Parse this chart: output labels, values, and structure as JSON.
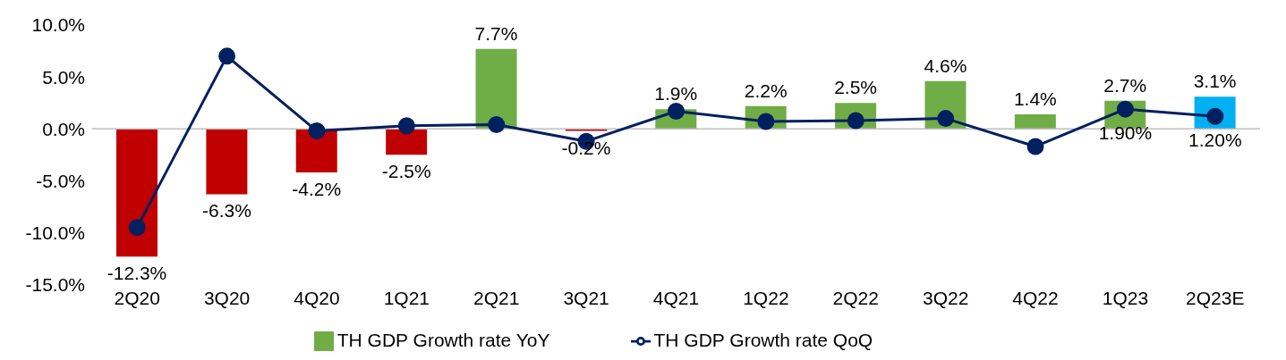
{
  "chart_data": {
    "type": "bar",
    "categories": [
      "2Q20",
      "3Q20",
      "4Q20",
      "1Q21",
      "2Q21",
      "3Q21",
      "4Q21",
      "1Q22",
      "2Q22",
      "3Q22",
      "4Q22",
      "1Q23",
      "2Q23E"
    ],
    "series": [
      {
        "name": "TH GDP Growth rate YoY",
        "color": "#70ad47",
        "colors": [
          "#c00000",
          "#c00000",
          "#c00000",
          "#c00000",
          "#70ad47",
          "#c00000",
          "#70ad47",
          "#70ad47",
          "#70ad47",
          "#70ad47",
          "#70ad47",
          "#70ad47",
          "#00b0f0"
        ],
        "values": [
          -12.3,
          -6.3,
          -4.2,
          -2.5,
          7.7,
          -0.2,
          1.9,
          2.2,
          2.5,
          4.6,
          1.4,
          2.7,
          3.1
        ],
        "value_labels": [
          "-12.3%",
          "-6.3%",
          "-4.2%",
          "-2.5%",
          "7.7%",
          "-0.2%",
          "1.9%",
          "2.2%",
          "2.5%",
          "4.6%",
          "1.4%",
          "2.7%",
          "3.1%"
        ]
      },
      {
        "name": "TH GDP Growth rate QoQ",
        "type": "line",
        "color": "#002060",
        "values": [
          -9.5,
          7.0,
          -0.2,
          0.3,
          0.4,
          -1.2,
          1.7,
          0.7,
          0.8,
          1.0,
          -1.7,
          1.9,
          1.2
        ],
        "value_labels": [
          null,
          null,
          null,
          null,
          null,
          null,
          null,
          null,
          null,
          null,
          null,
          "1.90%",
          "1.20%"
        ]
      }
    ],
    "marker": "circle",
    "line_style": "solid",
    "ylim": [
      -15,
      10
    ],
    "yticks": [
      {
        "value": -15,
        "label": "-15.0%"
      },
      {
        "value": -10,
        "label": "-10.0%"
      },
      {
        "value": -5,
        "label": "-5.0%"
      },
      {
        "value": 0,
        "label": "0.0%"
      },
      {
        "value": 5,
        "label": "5.0%"
      },
      {
        "value": 10,
        "label": "10.0%"
      }
    ],
    "ref_lines": [
      {
        "axis": "y",
        "value": 0,
        "color": "#bfbfbf"
      }
    ],
    "grid": false,
    "legend": "bottom"
  }
}
